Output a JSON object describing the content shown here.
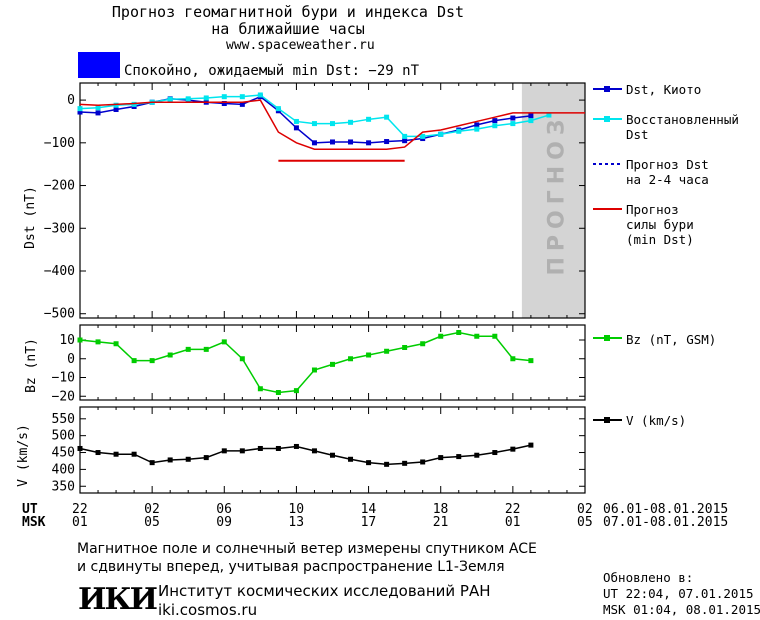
{
  "header": {
    "title_line1": "Прогноз геомагнитной бури и индекса Dst",
    "title_line2": "на ближайшие часы",
    "url": "www.spaceweather.ru"
  },
  "status": {
    "text": "Спокойно, ожидаемый min Dst: −29 nT",
    "color": "#0000ff"
  },
  "forecast_band_label": "ПРОГНОЗ",
  "legend": {
    "dst_kyoto": "Dst, Киото",
    "dst_restored_1": "Восстановленный",
    "dst_restored_2": "Dst",
    "dst_forecast_1": "Прогноз Dst",
    "dst_forecast_2": "на 2-4 часа",
    "storm_1": "Прогноз",
    "storm_2": "силы бури",
    "storm_3": "(min Dst)",
    "bz": "Bz (nT, GSM)",
    "v": "V (km/s)"
  },
  "time_axis": {
    "ut_label": "UT",
    "msk_label": "MSK",
    "ut_ticks": [
      "22",
      "02",
      "06",
      "10",
      "14",
      "18",
      "22",
      "02"
    ],
    "msk_ticks": [
      "01",
      "05",
      "09",
      "13",
      "17",
      "21",
      "01",
      "05"
    ],
    "ut_range": "06.01-08.01.2015",
    "msk_range": "07.01-08.01.2015"
  },
  "footer": {
    "line1": "Магнитное поле и солнечный ветер измерены спутником ACE",
    "line2": "и сдвинуты вперед, учитывая распространение L1-Земля",
    "logo": "ИКИ",
    "institute": "Институт космических исследований РАН",
    "site": "iki.cosmos.ru"
  },
  "updated": {
    "label": "Обновлено в:",
    "ut": "UT   22:04, 07.01.2015",
    "msk": "MSK 01:04, 08.01.2015"
  },
  "chart_data": [
    {
      "type": "line",
      "panel": "dst",
      "ylabel": "Dst (nT)",
      "ylim": [
        -510,
        40
      ],
      "yticks": [
        0,
        -100,
        -200,
        -300,
        -400,
        -500
      ],
      "x_unit": "hours since 22 UT 06.01.2015",
      "xlim": [
        0,
        28
      ],
      "forecast_region": [
        24.5,
        28
      ],
      "series": [
        {
          "name": "Dst, Киото",
          "color": "#0000cc",
          "x": [
            0,
            1,
            2,
            3,
            4,
            5,
            6,
            7,
            8,
            9,
            10,
            11,
            12,
            13,
            14,
            15,
            16,
            17,
            18,
            19,
            20,
            21,
            22,
            23,
            24,
            25
          ],
          "values": [
            -28,
            -30,
            -22,
            -15,
            -5,
            3,
            0,
            -5,
            -8,
            -10,
            8,
            -25,
            -65,
            -100,
            -98,
            -98,
            -100,
            -97,
            -95,
            -90,
            -80,
            -70,
            -58,
            -48,
            -42,
            -37
          ]
        },
        {
          "name": "Восстановленный Dst",
          "color": "#00e5ee",
          "x": [
            0,
            1,
            2,
            3,
            4,
            5,
            6,
            7,
            8,
            9,
            10,
            11,
            12,
            13,
            14,
            15,
            16,
            17,
            18,
            19,
            20,
            21,
            22,
            23,
            24,
            25,
            26
          ],
          "values": [
            -20,
            -18,
            -12,
            -10,
            -5,
            2,
            3,
            5,
            8,
            8,
            12,
            -20,
            -50,
            -55,
            -55,
            -52,
            -45,
            -40,
            -85,
            -85,
            -80,
            -73,
            -68,
            -60,
            -55,
            -48,
            -35
          ]
        },
        {
          "name": "Прогноз силы бури (min Dst)",
          "color": "#dd0000",
          "x": [
            0,
            1,
            2,
            3,
            4,
            5,
            6,
            7,
            8,
            9,
            10,
            11,
            12,
            13,
            14,
            15,
            16,
            17,
            18,
            19,
            20,
            21,
            22,
            23,
            24,
            25,
            26,
            27,
            28
          ],
          "values": [
            -10,
            -12,
            -10,
            -8,
            -5,
            -5,
            -5,
            -5,
            -5,
            -5,
            0,
            -75,
            -100,
            -115,
            -115,
            -115,
            -115,
            -115,
            -110,
            -75,
            -70,
            -60,
            -50,
            -40,
            -30,
            -30,
            -30,
            -30,
            -30
          ]
        }
      ],
      "storm_forecast_bar": {
        "x": [
          11,
          18
        ],
        "value": -142
      }
    },
    {
      "type": "line",
      "panel": "bz",
      "ylabel": "Bz (nT)",
      "ylim": [
        -22,
        18
      ],
      "yticks": [
        10,
        0,
        -10,
        -20
      ],
      "series": [
        {
          "name": "Bz (nT, GSM)",
          "color": "#00cc00",
          "x": [
            0,
            1,
            2,
            3,
            4,
            5,
            6,
            7,
            8,
            9,
            10,
            11,
            12,
            13,
            14,
            15,
            16,
            17,
            18,
            19,
            20,
            21,
            22,
            23,
            24,
            25
          ],
          "values": [
            10,
            9,
            8,
            -1,
            -1,
            2,
            5,
            5,
            9,
            0,
            -16,
            -18,
            -17,
            -6,
            -3,
            0,
            2,
            4,
            6,
            8,
            12,
            14,
            12,
            12,
            0,
            -1
          ]
        }
      ]
    },
    {
      "type": "line",
      "panel": "v",
      "ylabel": "V (km/s)",
      "ylim": [
        330,
        585
      ],
      "yticks": [
        550,
        500,
        450,
        400,
        350
      ],
      "series": [
        {
          "name": "V (km/s)",
          "color": "#000000",
          "x": [
            0,
            1,
            2,
            3,
            4,
            5,
            6,
            7,
            8,
            9,
            10,
            11,
            12,
            13,
            14,
            15,
            16,
            17,
            18,
            19,
            20,
            21,
            22,
            23,
            24,
            25
          ],
          "values": [
            462,
            450,
            445,
            445,
            420,
            428,
            430,
            435,
            455,
            455,
            462,
            462,
            468,
            455,
            442,
            430,
            420,
            415,
            418,
            422,
            435,
            438,
            442,
            450,
            460,
            472
          ]
        }
      ]
    }
  ]
}
